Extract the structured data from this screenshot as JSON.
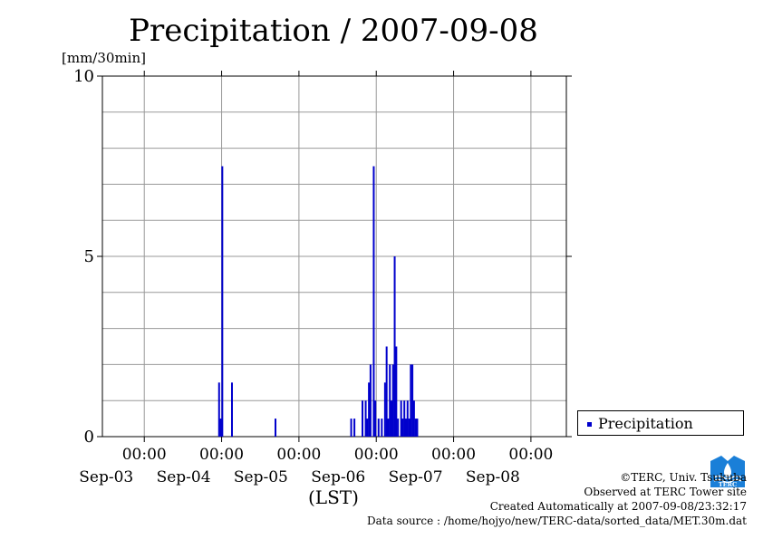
{
  "chart_data": {
    "type": "bar",
    "title": "Precipitation / 2007-09-08",
    "ylabel": "[mm/30min]",
    "xlabel": "(LST)",
    "ylim": [
      0,
      10
    ],
    "yticks": [
      0,
      5,
      10
    ],
    "xlim": [
      "2007-09-02 11:00",
      "2007-09-08 11:00"
    ],
    "xticks": [
      {
        "time": "00:00",
        "date": "Sep-03"
      },
      {
        "time": "00:00",
        "date": "Sep-04"
      },
      {
        "time": "00:00",
        "date": "Sep-05"
      },
      {
        "time": "00:00",
        "date": "Sep-06"
      },
      {
        "time": "00:00",
        "date": "Sep-07"
      },
      {
        "time": "00:00",
        "date": "Sep-08"
      }
    ],
    "grid": true,
    "legend_position": "right",
    "series": [
      {
        "name": "Precipitation",
        "color": "#0000cc",
        "points": [
          {
            "x": "2007-09-03 23:30",
            "y": 1.5
          },
          {
            "x": "2007-09-04 00:00",
            "y": 0.5
          },
          {
            "x": "2007-09-04 00:30",
            "y": 7.5
          },
          {
            "x": "2007-09-04 03:30",
            "y": 1.5
          },
          {
            "x": "2007-09-04 17:00",
            "y": 0.5
          },
          {
            "x": "2007-09-05 16:30",
            "y": 0.5
          },
          {
            "x": "2007-09-05 17:30",
            "y": 0.5
          },
          {
            "x": "2007-09-05 20:00",
            "y": 1.0
          },
          {
            "x": "2007-09-05 21:00",
            "y": 1.0
          },
          {
            "x": "2007-09-05 21:30",
            "y": 0.5
          },
          {
            "x": "2007-09-05 22:00",
            "y": 1.5
          },
          {
            "x": "2007-09-05 22:30",
            "y": 2.0
          },
          {
            "x": "2007-09-05 23:30",
            "y": 7.5
          },
          {
            "x": "2007-09-06 00:00",
            "y": 1.0
          },
          {
            "x": "2007-09-06 01:00",
            "y": 0.5
          },
          {
            "x": "2007-09-06 02:00",
            "y": 0.5
          },
          {
            "x": "2007-09-06 03:00",
            "y": 1.5
          },
          {
            "x": "2007-09-06 03:30",
            "y": 2.5
          },
          {
            "x": "2007-09-06 04:00",
            "y": 0.5
          },
          {
            "x": "2007-09-06 04:30",
            "y": 2.0
          },
          {
            "x": "2007-09-06 05:00",
            "y": 1.0
          },
          {
            "x": "2007-09-06 05:30",
            "y": 2.0
          },
          {
            "x": "2007-09-06 06:00",
            "y": 5.0
          },
          {
            "x": "2007-09-06 06:30",
            "y": 2.5
          },
          {
            "x": "2007-09-06 07:00",
            "y": 0.5
          },
          {
            "x": "2007-09-06 08:00",
            "y": 1.0
          },
          {
            "x": "2007-09-06 08:30",
            "y": 0.5
          },
          {
            "x": "2007-09-06 09:00",
            "y": 1.0
          },
          {
            "x": "2007-09-06 09:30",
            "y": 0.5
          },
          {
            "x": "2007-09-06 10:00",
            "y": 1.0
          },
          {
            "x": "2007-09-06 10:30",
            "y": 0.5
          },
          {
            "x": "2007-09-06 11:00",
            "y": 2.0
          },
          {
            "x": "2007-09-06 11:30",
            "y": 2.0
          },
          {
            "x": "2007-09-06 12:00",
            "y": 1.0
          },
          {
            "x": "2007-09-06 12:30",
            "y": 0.5
          },
          {
            "x": "2007-09-06 13:00",
            "y": 0.5
          }
        ]
      }
    ]
  },
  "footer": {
    "copyright": "©TERC, Univ. Tsukuba",
    "observed": "Observed at TERC Tower site",
    "created": "Created Automatically at 2007-09-08/23:32:17",
    "source": "Data source : /home/hojyo/new/TERC-data/sorted_data/MET.30m.dat"
  },
  "logo": {
    "text": "TERC",
    "color": "#1a7fd8"
  }
}
